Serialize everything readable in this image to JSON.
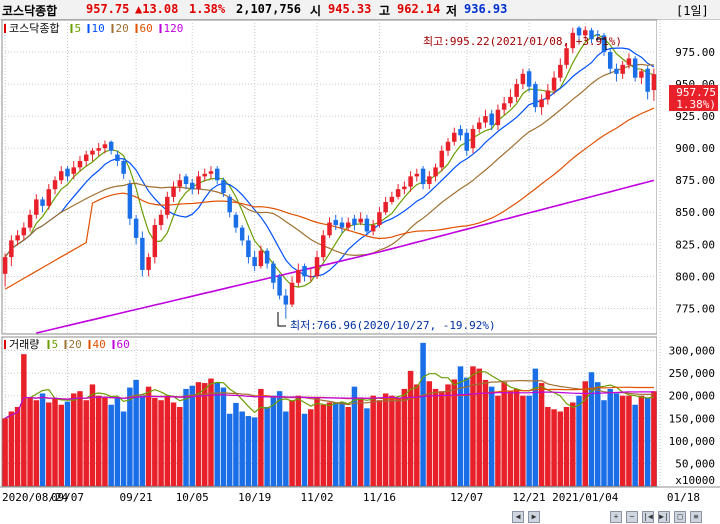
{
  "header": {
    "index_name": "코스닥종합",
    "price": "957.75",
    "change": "▲13.08",
    "change_pct": "1.38%",
    "volume": "2,107,756",
    "open_label": "시",
    "open": "945.33",
    "high_label": "고",
    "high": "962.14",
    "low_label": "저",
    "low": "936.93",
    "period_button": "[1일]"
  },
  "price_legend": {
    "title": "코스닥종합",
    "items": [
      {
        "label": "5",
        "color": "#6b9e00"
      },
      {
        "label": "10",
        "color": "#0050ff"
      },
      {
        "label": "20",
        "color": "#a07030"
      },
      {
        "label": "60",
        "color": "#e05000"
      },
      {
        "label": "120",
        "color": "#c000e0"
      }
    ]
  },
  "volume_legend": {
    "title": "거래량",
    "items": [
      {
        "label": "5",
        "color": "#6b9e00"
      },
      {
        "label": "20",
        "color": "#a07030"
      },
      {
        "label": "40",
        "color": "#e05000"
      },
      {
        "label": "60",
        "color": "#c000e0"
      }
    ]
  },
  "annotations": {
    "high": "최고:995.22(2021/01/08, +3.91%)",
    "low": "최저:766.96(2020/10/27, -19.92%)"
  },
  "current_price_tag": {
    "price": "957.75",
    "pct": "( 1.38%)"
  },
  "colors": {
    "up": "#e8202a",
    "down": "#1a6ee8",
    "grid": "#c8c8c8"
  },
  "chart_data": [
    {
      "type": "candlestick",
      "title": "코스닥종합",
      "y_ticks": [
        "975.00",
        "950.00",
        "925.00",
        "900.00",
        "875.00",
        "850.00",
        "825.00",
        "800.00",
        "775.00"
      ],
      "y_tick_values": [
        975,
        950,
        925,
        900,
        875,
        850,
        825,
        800,
        775
      ],
      "ylim": [
        755,
        1000
      ],
      "x_ticks": [
        "2020/08/24",
        "09/07",
        "09/21",
        "10/05",
        "10/19",
        "11/02",
        "11/16",
        "12/07",
        "12/21",
        "2021/01/04",
        "01/18"
      ],
      "x_tick_index": [
        0,
        10,
        21,
        30,
        40,
        50,
        60,
        74,
        84,
        93,
        105
      ],
      "close": [
        815,
        828,
        832,
        838,
        848,
        860,
        855,
        868,
        875,
        882,
        878,
        885,
        890,
        895,
        898,
        900,
        903,
        898,
        890,
        880,
        845,
        830,
        805,
        815,
        840,
        848,
        862,
        870,
        875,
        872,
        868,
        878,
        880,
        882,
        875,
        865,
        850,
        838,
        828,
        815,
        808,
        820,
        810,
        795,
        785,
        778,
        795,
        805,
        800,
        800,
        815,
        832,
        842,
        840,
        838,
        842,
        840,
        845,
        835,
        840,
        850,
        858,
        862,
        868,
        870,
        878,
        880,
        872,
        878,
        885,
        898,
        905,
        912,
        910,
        898,
        915,
        920,
        925,
        918,
        930,
        935,
        940,
        950,
        958,
        948,
        932,
        938,
        945,
        955,
        965,
        978,
        990,
        988,
        992,
        985,
        988,
        975,
        962,
        958,
        965,
        970,
        955,
        960,
        944,
        957.75
      ],
      "open": [
        802,
        815,
        828,
        832,
        838,
        848,
        860,
        855,
        868,
        875,
        884,
        880,
        885,
        890,
        895,
        898,
        900,
        905,
        895,
        890,
        872,
        845,
        830,
        805,
        815,
        840,
        848,
        862,
        870,
        878,
        873,
        868,
        878,
        880,
        884,
        875,
        862,
        848,
        838,
        828,
        815,
        808,
        820,
        810,
        800,
        785,
        778,
        795,
        808,
        800,
        800,
        815,
        832,
        844,
        842,
        838,
        845,
        842,
        845,
        835,
        840,
        850,
        858,
        862,
        868,
        870,
        878,
        884,
        872,
        878,
        885,
        898,
        905,
        915,
        912,
        900,
        915,
        920,
        927,
        918,
        930,
        935,
        940,
        950,
        960,
        950,
        932,
        938,
        945,
        955,
        965,
        978,
        994,
        988,
        992,
        989,
        988,
        975,
        962,
        958,
        965,
        970,
        955,
        962,
        945.33
      ],
      "high": [
        818,
        832,
        836,
        842,
        852,
        864,
        862,
        872,
        878,
        886,
        886,
        890,
        894,
        898,
        900,
        904,
        906,
        906,
        898,
        892,
        875,
        848,
        835,
        818,
        845,
        852,
        866,
        874,
        880,
        880,
        876,
        882,
        884,
        886,
        886,
        877,
        864,
        850,
        840,
        832,
        820,
        824,
        822,
        812,
        802,
        790,
        800,
        810,
        810,
        806,
        820,
        836,
        846,
        848,
        846,
        846,
        848,
        850,
        848,
        844,
        854,
        862,
        866,
        872,
        874,
        882,
        884,
        886,
        882,
        888,
        902,
        908,
        916,
        918,
        915,
        918,
        924,
        930,
        930,
        934,
        940,
        946,
        954,
        962,
        962,
        952,
        942,
        950,
        960,
        970,
        982,
        994,
        995.22,
        995,
        994,
        992,
        990,
        978,
        966,
        968,
        974,
        972,
        962,
        964,
        962.14
      ],
      "low": [
        792,
        808,
        824,
        828,
        835,
        845,
        850,
        852,
        864,
        872,
        874,
        876,
        882,
        886,
        890,
        894,
        896,
        895,
        886,
        876,
        840,
        825,
        800,
        800,
        810,
        836,
        845,
        858,
        866,
        868,
        864,
        864,
        874,
        876,
        872,
        862,
        846,
        834,
        824,
        810,
        804,
        806,
        806,
        790,
        782,
        766.96,
        776,
        792,
        796,
        796,
        798,
        812,
        830,
        836,
        834,
        836,
        836,
        840,
        832,
        832,
        838,
        848,
        856,
        860,
        864,
        866,
        874,
        868,
        868,
        874,
        882,
        894,
        902,
        906,
        894,
        896,
        912,
        916,
        914,
        914,
        926,
        932,
        936,
        946,
        944,
        928,
        926,
        934,
        942,
        952,
        962,
        974,
        984,
        984,
        982,
        984,
        972,
        958,
        952,
        954,
        962,
        952,
        950,
        938,
        936.93
      ]
    },
    {
      "type": "bar",
      "title": "거래량",
      "y_ticks": [
        "300,000",
        "250,000",
        "200,000",
        "150,000",
        "100,000",
        "50,000",
        "x10000"
      ],
      "y_tick_values": [
        300000,
        250000,
        200000,
        150000,
        100000,
        50000
      ],
      "ylim": [
        0,
        330000
      ],
      "values": [
        150000,
        165000,
        175000,
        292000,
        196000,
        190000,
        205000,
        185000,
        193000,
        180000,
        187000,
        205000,
        210000,
        190000,
        225000,
        200000,
        195000,
        180000,
        197000,
        165000,
        218000,
        235000,
        200000,
        220000,
        195000,
        190000,
        200000,
        185000,
        175000,
        215000,
        222000,
        230000,
        228000,
        238000,
        229000,
        218000,
        160000,
        184000,
        165000,
        155000,
        152000,
        215000,
        175000,
        200000,
        210000,
        165000,
        190000,
        200000,
        160000,
        170000,
        195000,
        180000,
        185000,
        185000,
        186000,
        175000,
        220000,
        196000,
        172000,
        200000,
        190000,
        205000,
        200000,
        196000,
        215000,
        255000,
        225000,
        317000,
        232000,
        215000,
        210000,
        225000,
        236000,
        265000,
        240000,
        265000,
        260000,
        235000,
        220000,
        200000,
        230000,
        210000,
        215000,
        200000,
        200000,
        260000,
        228000,
        175000,
        170000,
        165000,
        175000,
        185000,
        200000,
        232000,
        252000,
        230000,
        190000,
        215000,
        205000,
        200000,
        200000,
        180000,
        200000,
        195000,
        210000
      ]
    }
  ]
}
